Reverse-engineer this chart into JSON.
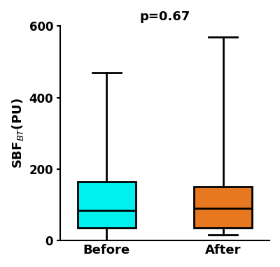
{
  "before": {
    "whislo": 0,
    "q1": 35,
    "med": 85,
    "q3": 165,
    "whishi": 470
  },
  "after": {
    "whislo": 15,
    "q1": 35,
    "med": 90,
    "q3": 150,
    "whishi": 570
  },
  "colors": [
    "#00EFEF",
    "#E87820"
  ],
  "ylabel": "SBF$_{BT}$(PU)",
  "xlabel_before": "Before",
  "xlabel_after": "After",
  "ylim": [
    0,
    600
  ],
  "yticks": [
    0,
    200,
    400,
    600
  ],
  "pvalue_text": "p=0.67",
  "box_width": 0.5,
  "linewidth": 2.0
}
